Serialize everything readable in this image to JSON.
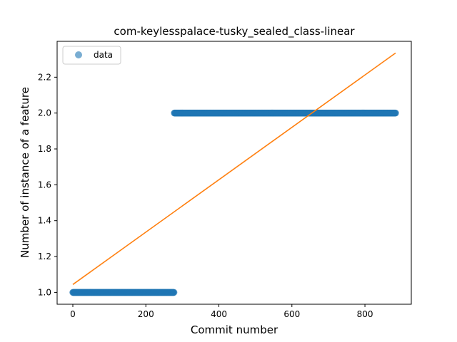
{
  "chart_data": {
    "type": "scatter",
    "title": "com-keylesspalace-tusky_sealed_class-linear",
    "xlabel": "Commit number",
    "ylabel": "Number of instance of a feature",
    "xlim": [
      -43,
      927
    ],
    "ylim": [
      0.934,
      2.4
    ],
    "xticks": [
      0,
      200,
      400,
      600,
      800
    ],
    "yticks": [
      1.0,
      1.2,
      1.4,
      1.6,
      1.8,
      2.0,
      2.2
    ],
    "ytick_labels": [
      "1.0",
      "1.2",
      "1.4",
      "1.6",
      "1.8",
      "2.0",
      "2.2"
    ],
    "grid": false,
    "legend": {
      "position": "top-left",
      "entries": [
        "data"
      ]
    },
    "series": [
      {
        "name": "data",
        "kind": "points",
        "color": "#1f77b4",
        "segments": [
          {
            "x_start": 0,
            "x_end": 277,
            "y": 1.0
          },
          {
            "x_start": 278,
            "x_end": 884,
            "y": 2.0
          }
        ]
      },
      {
        "kind": "line",
        "color": "#ff7f0e",
        "x": [
          0,
          884
        ],
        "y": [
          1.044,
          2.335
        ]
      }
    ]
  }
}
